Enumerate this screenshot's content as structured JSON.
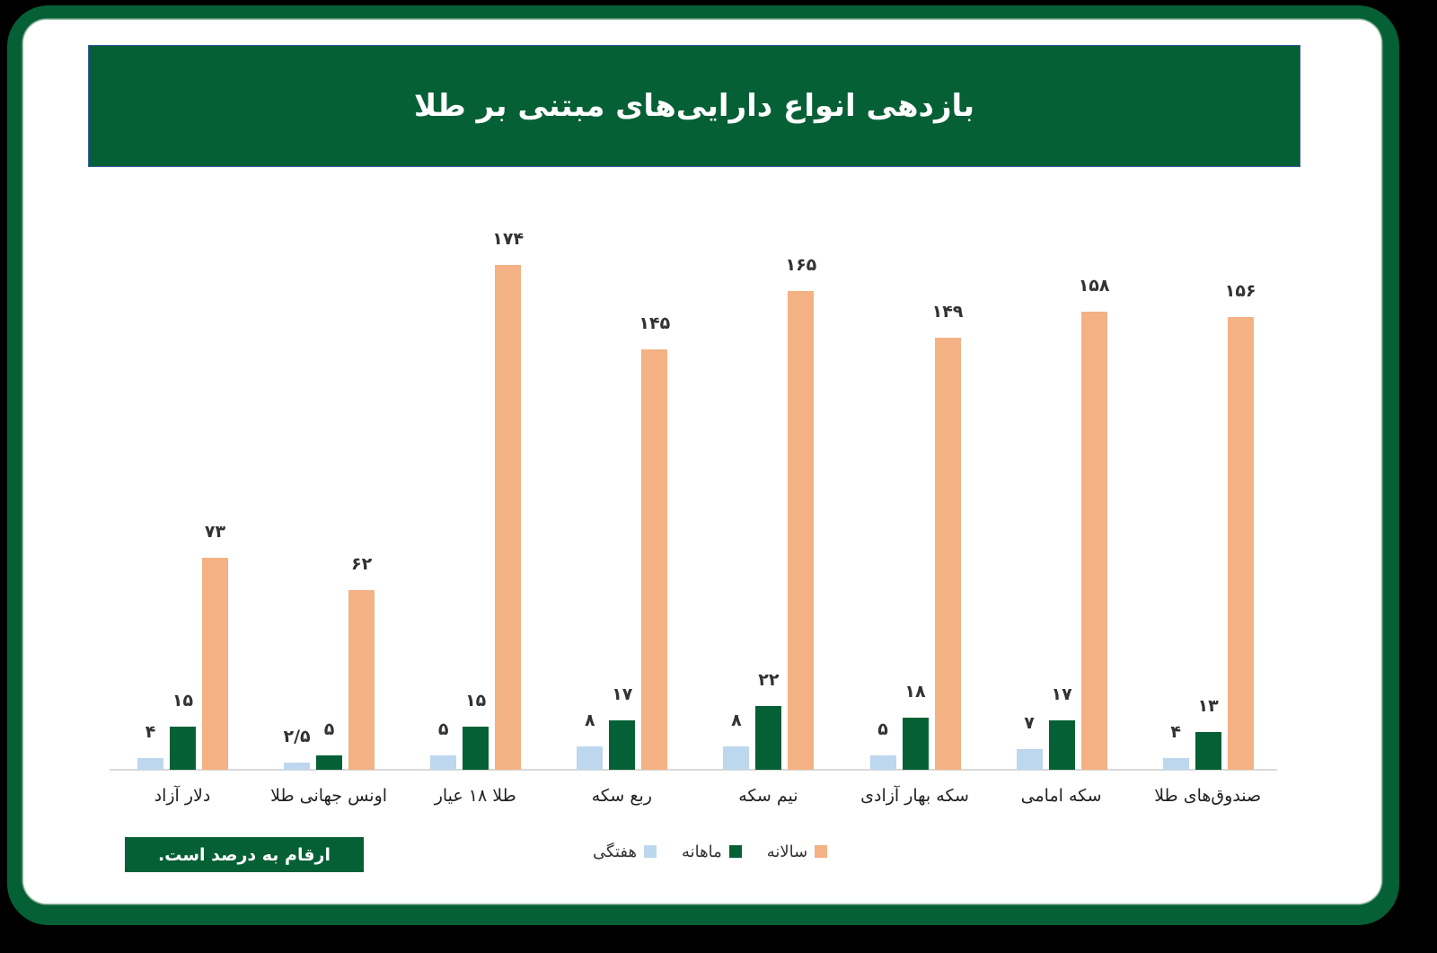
{
  "title": "بازدهی انواع دارایی‌های مبتنی بر طلا",
  "note": "ارقام به درصد است.",
  "colors": {
    "weekly": "#bdd7ee",
    "monthly": "#066035",
    "yearly": "#f4b183",
    "frame": "#066035"
  },
  "legend": [
    {
      "key": "yearly",
      "label": "سالانه"
    },
    {
      "key": "monthly",
      "label": "ماهانه"
    },
    {
      "key": "weekly",
      "label": "هفتگی"
    }
  ],
  "groups": [
    {
      "label": "دلار آزاد",
      "weekly": "۴",
      "monthly": "۱۵",
      "yearly": "۷۳"
    },
    {
      "label": "اونس جهانی طلا",
      "weekly": "۲/۵",
      "monthly": "۵",
      "yearly": "۶۲"
    },
    {
      "label": "طلا ۱۸ عیار",
      "weekly": "۵",
      "monthly": "۱۵",
      "yearly": "۱۷۴"
    },
    {
      "label": "ربع سکه",
      "weekly": "۸",
      "monthly": "۱۷",
      "yearly": "۱۴۵"
    },
    {
      "label": "نیم سکه",
      "weekly": "۸",
      "monthly": "۲۲",
      "yearly": "۱۶۵"
    },
    {
      "label": "سکه بهار آزادی",
      "weekly": "۵",
      "monthly": "۱۸",
      "yearly": "۱۴۹"
    },
    {
      "label": "سکه امامی",
      "weekly": "۷",
      "monthly": "۱۷",
      "yearly": "۱۵۸"
    },
    {
      "label": "صندوق‌های طلا",
      "weekly": "۴",
      "monthly": "۱۳",
      "yearly": "۱۵۶"
    }
  ],
  "chart_data": {
    "type": "bar",
    "title": "بازدهی انواع دارایی‌های مبتنی بر طلا",
    "categories": [
      "دلار آزاد",
      "اونس جهانی طلا",
      "طلا ۱۸ عیار",
      "ربع سکه",
      "نیم سکه",
      "سکه بهار آزادی",
      "سکه امامی",
      "صندوق‌های طلا"
    ],
    "series": [
      {
        "name": "هفتگی",
        "color": "#bdd7ee",
        "values": [
          4,
          2.5,
          5,
          8,
          8,
          5,
          7,
          4
        ]
      },
      {
        "name": "ماهانه",
        "color": "#066035",
        "values": [
          15,
          5,
          15,
          17,
          22,
          18,
          17,
          13
        ]
      },
      {
        "name": "سالانه",
        "color": "#f4b183",
        "values": [
          73,
          62,
          174,
          145,
          165,
          149,
          158,
          156
        ]
      }
    ],
    "xlabel": "",
    "ylabel": "",
    "unit": "percent",
    "note": "ارقام به درصد است.",
    "grid": false,
    "y_axis_visible": false,
    "legend_position": "bottom",
    "data_labels": true
  }
}
